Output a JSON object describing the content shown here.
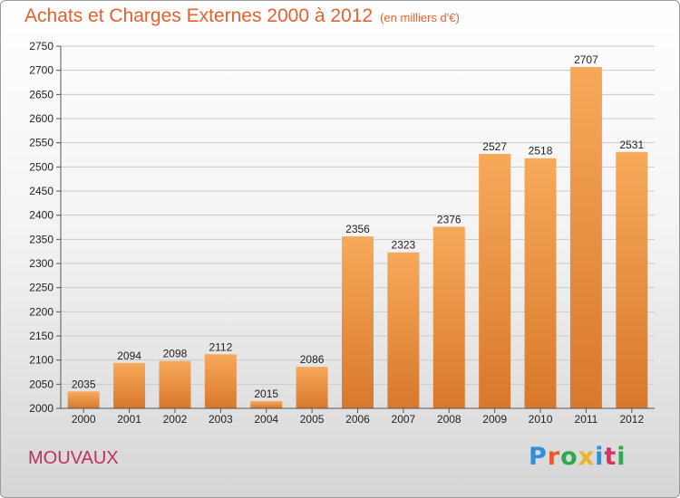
{
  "title": "Achats et Charges Externes 2000 à 2012",
  "subtitle": "(en milliers d'€)",
  "commune": "MOUVAUX",
  "logo": {
    "text": "Proxiti",
    "colors": [
      "#2f8fd8",
      "#e85b2a",
      "#2fa84f",
      "#e8b52a",
      "#2f8fd8",
      "#d8345f",
      "#2fa84f"
    ]
  },
  "colors": {
    "bar_top": "#f7a95a",
    "bar_bottom": "#d8782c",
    "title": "#e8602c",
    "commune": "#c0305b"
  },
  "chart_data": {
    "type": "bar",
    "title": "Achats et Charges Externes 2000 à 2012",
    "subtitle": "(en milliers d'€)",
    "categories": [
      "2000",
      "2001",
      "2002",
      "2003",
      "2004",
      "2005",
      "2006",
      "2007",
      "2008",
      "2009",
      "2010",
      "2011",
      "2012"
    ],
    "values": [
      2035,
      2094,
      2098,
      2112,
      2015,
      2086,
      2356,
      2323,
      2376,
      2527,
      2518,
      2707,
      2531
    ],
    "ylim": [
      2000,
      2750
    ],
    "yticks": [
      2000,
      2050,
      2100,
      2150,
      2200,
      2250,
      2300,
      2350,
      2400,
      2450,
      2500,
      2550,
      2600,
      2650,
      2700,
      2750
    ],
    "grid": true,
    "data_labels": true
  }
}
